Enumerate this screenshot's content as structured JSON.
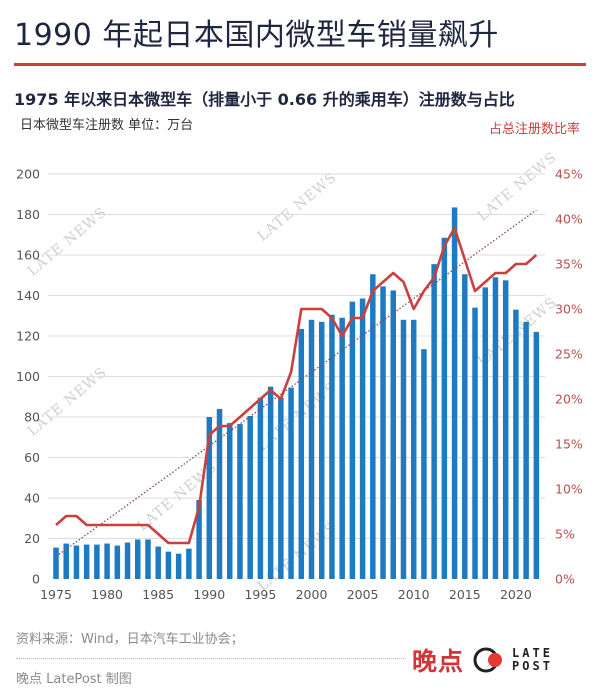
{
  "header": {
    "title": "1990 年起日本国内微型车销量飙升",
    "subtitle": "1975 年以来日本微型车（排量小于 0.66 升的乘用车）注册数与占比",
    "left_unit": "日本微型车注册数  单位：万台",
    "right_unit": "占总注册数比率"
  },
  "footer": {
    "source": "资料来源：Wind，日本汽车工业协会；",
    "credit": "晚点 LatePost 制图",
    "logo_cn": "晚点",
    "logo_en_line1": "LATE",
    "logo_en_line2": "POST"
  },
  "watermark_text": "LATE NEWS",
  "colors": {
    "bar": "#1f7bc1",
    "line": "#c9413e",
    "trend": "#8a4a55",
    "grid": "#dddddd",
    "title": "#1f2740",
    "accent": "#c9413e"
  },
  "chart_data": {
    "type": "bar",
    "title": "1975 年以来日本微型车（排量小于 0.66 升的乘用车）注册数与占比",
    "xlabel": "",
    "ylabel": "日本微型车注册数 单位：万台",
    "y2label": "占总注册数比率",
    "ylim": [
      0,
      200
    ],
    "y2lim": [
      0,
      45
    ],
    "grid": true,
    "x": [
      1975,
      1976,
      1977,
      1978,
      1979,
      1980,
      1981,
      1982,
      1983,
      1984,
      1985,
      1986,
      1987,
      1988,
      1989,
      1990,
      1991,
      1992,
      1993,
      1994,
      1995,
      1996,
      1997,
      1998,
      1999,
      2000,
      2001,
      2002,
      2003,
      2004,
      2005,
      2006,
      2007,
      2008,
      2009,
      2010,
      2011,
      2012,
      2013,
      2014,
      2015,
      2016,
      2017,
      2018,
      2019,
      2020,
      2021,
      2022
    ],
    "x_ticks": [
      "1975",
      "1980",
      "1985",
      "1990",
      "1995",
      "2000",
      "2005",
      "2010",
      "2015",
      "2020"
    ],
    "y_ticks": [
      "0",
      "20",
      "40",
      "60",
      "80",
      "100",
      "120",
      "140",
      "160",
      "180",
      "200"
    ],
    "y2_ticks": [
      "0%",
      "5%",
      "10%",
      "15%",
      "20%",
      "25%",
      "30%",
      "35%",
      "40%",
      "45%"
    ],
    "series": [
      {
        "name": "日本微型车注册数（万台）",
        "type": "bar",
        "axis": "left",
        "values": [
          15.5,
          17.5,
          16.5,
          17,
          17,
          17.5,
          16.5,
          18,
          19.5,
          19.5,
          16,
          13.5,
          12.5,
          15,
          39,
          80,
          84,
          77,
          76.5,
          80.5,
          89.5,
          95,
          89.5,
          94.5,
          123.5,
          128,
          127,
          130.5,
          129,
          137,
          138.5,
          150.5,
          144.5,
          142.5,
          128,
          128,
          113.5,
          155.5,
          168.5,
          183.5,
          150.5,
          134,
          144,
          149,
          147.5,
          133,
          127,
          122
        ]
      },
      {
        "name": "占总注册数比率（%）",
        "type": "line",
        "axis": "right",
        "values": [
          6,
          7,
          7,
          6,
          6,
          6,
          6,
          6,
          6,
          6,
          5,
          4,
          4,
          4,
          8,
          16,
          17,
          17,
          18,
          19,
          20,
          21,
          20,
          23,
          30,
          30,
          30,
          29,
          27,
          29,
          29,
          32,
          33,
          34,
          33,
          30,
          32,
          33.5,
          37,
          39,
          35.5,
          32,
          33,
          34,
          34,
          35,
          35,
          36
        ]
      },
      {
        "name": "比率趋势线",
        "type": "trendline",
        "axis": "right",
        "start": [
          1975,
          2.5
        ],
        "end": [
          2022,
          41
        ]
      }
    ]
  }
}
